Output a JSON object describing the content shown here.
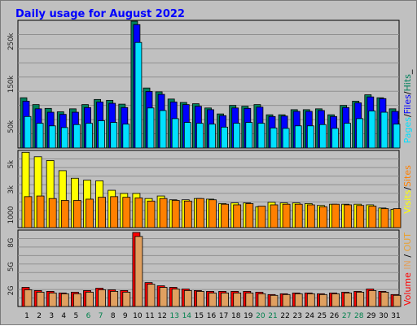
{
  "title": "Daily usage for August 2022",
  "colors": {
    "background": "#c0c0c0",
    "panel": "#c0c0c0",
    "title": "#0000ff",
    "hits": "#00805c",
    "files": "#0000ff",
    "pages": "#00e0ff",
    "visits": "#ffff00",
    "sites": "#ff8000",
    "kbytes": "#ff0000",
    "in": "#e0a060",
    "out": "#e8a030",
    "weekend": "#00804c",
    "day": "#000000"
  },
  "legends": {
    "top": [
      {
        "text": "Pages",
        "color": "#00e0ff"
      },
      {
        "text": "/",
        "color": "#000000"
      },
      {
        "text": "Files",
        "color": "#0000ff"
      },
      {
        "text": "/",
        "color": "#000000"
      },
      {
        "text": "Hits",
        "color": "#00805c"
      },
      {
        "text": "_",
        "color": "#000000"
      }
    ],
    "mid": [
      {
        "text": "Visits",
        "color": "#ffff00"
      },
      {
        "text": "/",
        "color": "#000000"
      },
      {
        "text": "Sites",
        "color": "#ff8000"
      }
    ],
    "bottom": [
      {
        "text": "Volume",
        "color": "#ff0000"
      },
      {
        "text": "  ",
        "color": "#000000"
      },
      {
        "text": "IN",
        "color": "#e0a060"
      },
      {
        "text": " / ",
        "color": "#000000"
      },
      {
        "text": "OUT",
        "color": "#e8a030"
      }
    ]
  },
  "chart_data": [
    {
      "type": "bar",
      "panel": "top",
      "categories": [
        "1",
        "2",
        "3",
        "4",
        "5",
        "6",
        "7",
        "8",
        "9",
        "10",
        "11",
        "12",
        "13",
        "14",
        "15",
        "16",
        "17",
        "18",
        "19",
        "20",
        "21",
        "22",
        "23",
        "24",
        "25",
        "26",
        "27",
        "28",
        "29",
        "30",
        "31"
      ],
      "y_ticks": [
        "250k",
        "150k",
        "50k"
      ],
      "y_tick_values": [
        250000,
        150000,
        50000
      ],
      "ylim": [
        0,
        300000
      ],
      "weekend_days": [
        6,
        7,
        13,
        14,
        20,
        21,
        27,
        28
      ],
      "series": [
        {
          "name": "Hits",
          "values": [
            118000,
            102000,
            93000,
            85000,
            92000,
            102000,
            114000,
            112000,
            103000,
            298000,
            141000,
            132000,
            115000,
            107000,
            104000,
            94000,
            80000,
            100000,
            98000,
            102000,
            78000,
            78000,
            90000,
            90000,
            92000,
            78000,
            100000,
            110000,
            125000,
            118000,
            92000
          ]
        },
        {
          "name": "Files",
          "values": [
            110000,
            92000,
            84000,
            79000,
            84000,
            95000,
            108000,
            105000,
            95000,
            290000,
            133000,
            126000,
            108000,
            102000,
            98000,
            90000,
            76000,
            94000,
            93000,
            96000,
            74000,
            75000,
            86000,
            86000,
            88000,
            74000,
            95000,
            106000,
            120000,
            116000,
            86000
          ]
        },
        {
          "name": "Pages",
          "values": [
            74000,
            58000,
            52000,
            48000,
            55000,
            58000,
            64000,
            60000,
            56000,
            248000,
            94000,
            88000,
            69000,
            60000,
            58000,
            56000,
            49000,
            58000,
            60000,
            58000,
            47000,
            46000,
            52000,
            52000,
            55000,
            46000,
            58000,
            69000,
            87000,
            84000,
            56000
          ]
        }
      ]
    },
    {
      "type": "bar",
      "panel": "middle",
      "categories": [
        "1",
        "2",
        "3",
        "4",
        "5",
        "6",
        "7",
        "8",
        "9",
        "10",
        "11",
        "12",
        "13",
        "14",
        "15",
        "16",
        "17",
        "18",
        "19",
        "20",
        "21",
        "22",
        "23",
        "24",
        "25",
        "26",
        "27",
        "28",
        "29",
        "30",
        "31"
      ],
      "y_ticks": [
        "5k",
        "3k",
        "1000"
      ],
      "y_tick_values": [
        5000,
        3000,
        1000
      ],
      "ylim": [
        0,
        6100
      ],
      "series": [
        {
          "name": "Visits",
          "values": [
            5950,
            5600,
            5300,
            4500,
            3900,
            3750,
            3700,
            2950,
            2700,
            2700,
            2300,
            2500,
            2200,
            2200,
            2300,
            2250,
            1900,
            1950,
            1950,
            1650,
            2000,
            1950,
            1950,
            1900,
            1750,
            1850,
            1850,
            1850,
            1800,
            1550,
            1450
          ]
        },
        {
          "name": "Sites",
          "values": [
            2450,
            2500,
            2300,
            2150,
            2150,
            2250,
            2400,
            2450,
            2400,
            2350,
            2100,
            2300,
            2150,
            2100,
            2300,
            2200,
            1850,
            1800,
            1900,
            1700,
            1800,
            1850,
            1850,
            1800,
            1650,
            1850,
            1800,
            1750,
            1700,
            1500,
            1500
          ]
        }
      ]
    },
    {
      "type": "bar",
      "panel": "bottom",
      "categories": [
        "1",
        "2",
        "3",
        "4",
        "5",
        "6",
        "7",
        "8",
        "9",
        "10",
        "11",
        "12",
        "13",
        "14",
        "15",
        "16",
        "17",
        "18",
        "19",
        "20",
        "21",
        "22",
        "23",
        "24",
        "25",
        "26",
        "27",
        "28",
        "29",
        "30",
        "31"
      ],
      "y_ticks": [
        "8G",
        "5G",
        "2G"
      ],
      "y_tick_values": [
        8,
        5,
        2
      ],
      "ylim": [
        0,
        9.6
      ],
      "series": [
        {
          "name": "Volume",
          "values": [
            2.4,
            2.0,
            1.9,
            1.7,
            1.8,
            2.0,
            2.3,
            2.1,
            2.0,
            9.3,
            3.0,
            2.6,
            2.4,
            2.2,
            2.0,
            1.9,
            1.9,
            1.9,
            1.9,
            1.8,
            1.5,
            1.6,
            1.7,
            1.7,
            1.6,
            1.7,
            1.8,
            1.9,
            2.2,
            1.9,
            1.5
          ]
        },
        {
          "name": "IN",
          "values": [
            2.1,
            1.8,
            1.7,
            1.6,
            1.6,
            1.8,
            2.1,
            1.9,
            1.8,
            8.8,
            2.8,
            2.4,
            2.2,
            2.0,
            1.9,
            1.7,
            1.7,
            1.7,
            1.7,
            1.6,
            1.4,
            1.5,
            1.6,
            1.6,
            1.5,
            1.6,
            1.7,
            1.8,
            2.0,
            1.8,
            1.4
          ]
        }
      ]
    }
  ]
}
